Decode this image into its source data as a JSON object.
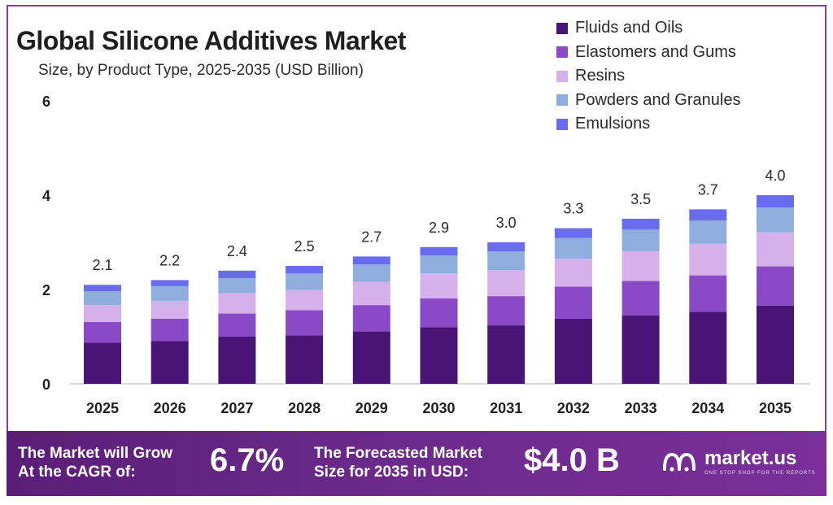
{
  "header": {
    "title": "Global Silicone Additives Market",
    "subtitle": "Size, by Product Type, 2025-2035 (USD Billion)"
  },
  "colors": {
    "fluids": "#4a1477",
    "elastomers": "#8a4ac8",
    "resins": "#d6b0ea",
    "powders": "#8faede",
    "emulsions": "#6a6cf0",
    "banner": "#6b2a8a"
  },
  "chart_data": {
    "type": "bar",
    "stacked": true,
    "title": "Global Silicone Additives Market",
    "subtitle": "Size, by Product Type, 2025-2035 (USD Billion)",
    "xlabel": "",
    "ylabel": "",
    "ylim": [
      0,
      6
    ],
    "yticks": [
      "0",
      "2",
      "4",
      "6"
    ],
    "gridlines": false,
    "legend_position": "top-right",
    "categories": [
      "2025",
      "2026",
      "2027",
      "2028",
      "2029",
      "2030",
      "2031",
      "2032",
      "2033",
      "2034",
      "2035"
    ],
    "series": [
      {
        "name": "Fluids and Oils",
        "values": [
          0.87,
          0.91,
          1.0,
          1.03,
          1.11,
          1.2,
          1.24,
          1.38,
          1.45,
          1.53,
          1.66
        ]
      },
      {
        "name": "Elastomers and Gums",
        "values": [
          0.44,
          0.47,
          0.49,
          0.53,
          0.56,
          0.61,
          0.62,
          0.68,
          0.73,
          0.77,
          0.83
        ]
      },
      {
        "name": "Resins",
        "values": [
          0.36,
          0.38,
          0.43,
          0.43,
          0.49,
          0.53,
          0.55,
          0.59,
          0.63,
          0.67,
          0.72
        ]
      },
      {
        "name": "Powders and Granules",
        "values": [
          0.29,
          0.31,
          0.32,
          0.35,
          0.37,
          0.38,
          0.4,
          0.44,
          0.46,
          0.49,
          0.53
        ]
      },
      {
        "name": "Emulsions",
        "values": [
          0.14,
          0.13,
          0.16,
          0.16,
          0.17,
          0.18,
          0.19,
          0.21,
          0.23,
          0.24,
          0.26
        ]
      }
    ],
    "totals": [
      "2.1",
      "2.2",
      "2.4",
      "2.5",
      "2.7",
      "2.9",
      "3.0",
      "3.3",
      "3.5",
      "3.7",
      "4.0"
    ]
  },
  "banner": {
    "cagr_label_line1": "The Market will Grow",
    "cagr_label_line2": "At the CAGR of:",
    "cagr_value": "6.7%",
    "forecast_label_line1": "The Forecasted Market",
    "forecast_label_line2": "Size for 2035 in USD:",
    "forecast_value": "$4.0 B",
    "logo_name": "market.us",
    "logo_tagline": "ONE STOP SHOP FOR THE REPORTS"
  }
}
